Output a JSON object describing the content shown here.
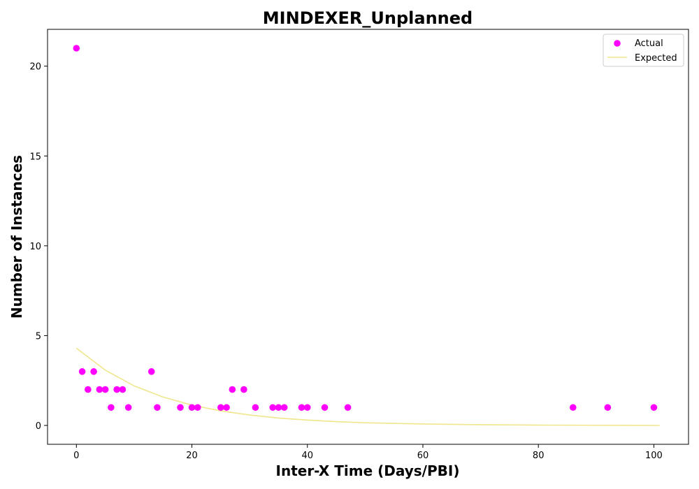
{
  "chart_data": {
    "type": "scatter",
    "title": "MINDEXER_Unplanned",
    "xlabel": "Inter-X Time (Days/PBI)",
    "ylabel": "Number of Instances",
    "xlim": [
      -5,
      106
    ],
    "ylim": [
      -1.05,
      22.05
    ],
    "xticks": [
      0,
      20,
      40,
      60,
      80,
      100
    ],
    "yticks": [
      0,
      5,
      10,
      15,
      20
    ],
    "grid": false,
    "legend_position": "top-right",
    "series": [
      {
        "name": "Actual",
        "kind": "scatter",
        "color": "#ff00ff",
        "points": [
          [
            0,
            21
          ],
          [
            1,
            3
          ],
          [
            2,
            2
          ],
          [
            3,
            3
          ],
          [
            4,
            2
          ],
          [
            5,
            2
          ],
          [
            6,
            1
          ],
          [
            7,
            2
          ],
          [
            8,
            2
          ],
          [
            9,
            1
          ],
          [
            13,
            3
          ],
          [
            14,
            1
          ],
          [
            18,
            1
          ],
          [
            20,
            1
          ],
          [
            21,
            1
          ],
          [
            25,
            1
          ],
          [
            26,
            1
          ],
          [
            27,
            2
          ],
          [
            29,
            2
          ],
          [
            31,
            1
          ],
          [
            34,
            1
          ],
          [
            35,
            1
          ],
          [
            36,
            1
          ],
          [
            39,
            1
          ],
          [
            40,
            1
          ],
          [
            43,
            1
          ],
          [
            47,
            1
          ],
          [
            86,
            1
          ],
          [
            92,
            1
          ],
          [
            100,
            1
          ]
        ]
      },
      {
        "name": "Expected",
        "kind": "line",
        "color": "#f0e68c",
        "x": [
          0,
          5,
          10,
          15,
          20,
          25,
          30,
          35,
          40,
          45,
          50,
          60,
          70,
          80,
          90,
          101
        ],
        "y": [
          4.3,
          3.08,
          2.2,
          1.58,
          1.13,
          0.81,
          0.58,
          0.41,
          0.3,
          0.21,
          0.15,
          0.08,
          0.04,
          0.02,
          0.01,
          0.0
        ]
      }
    ]
  }
}
